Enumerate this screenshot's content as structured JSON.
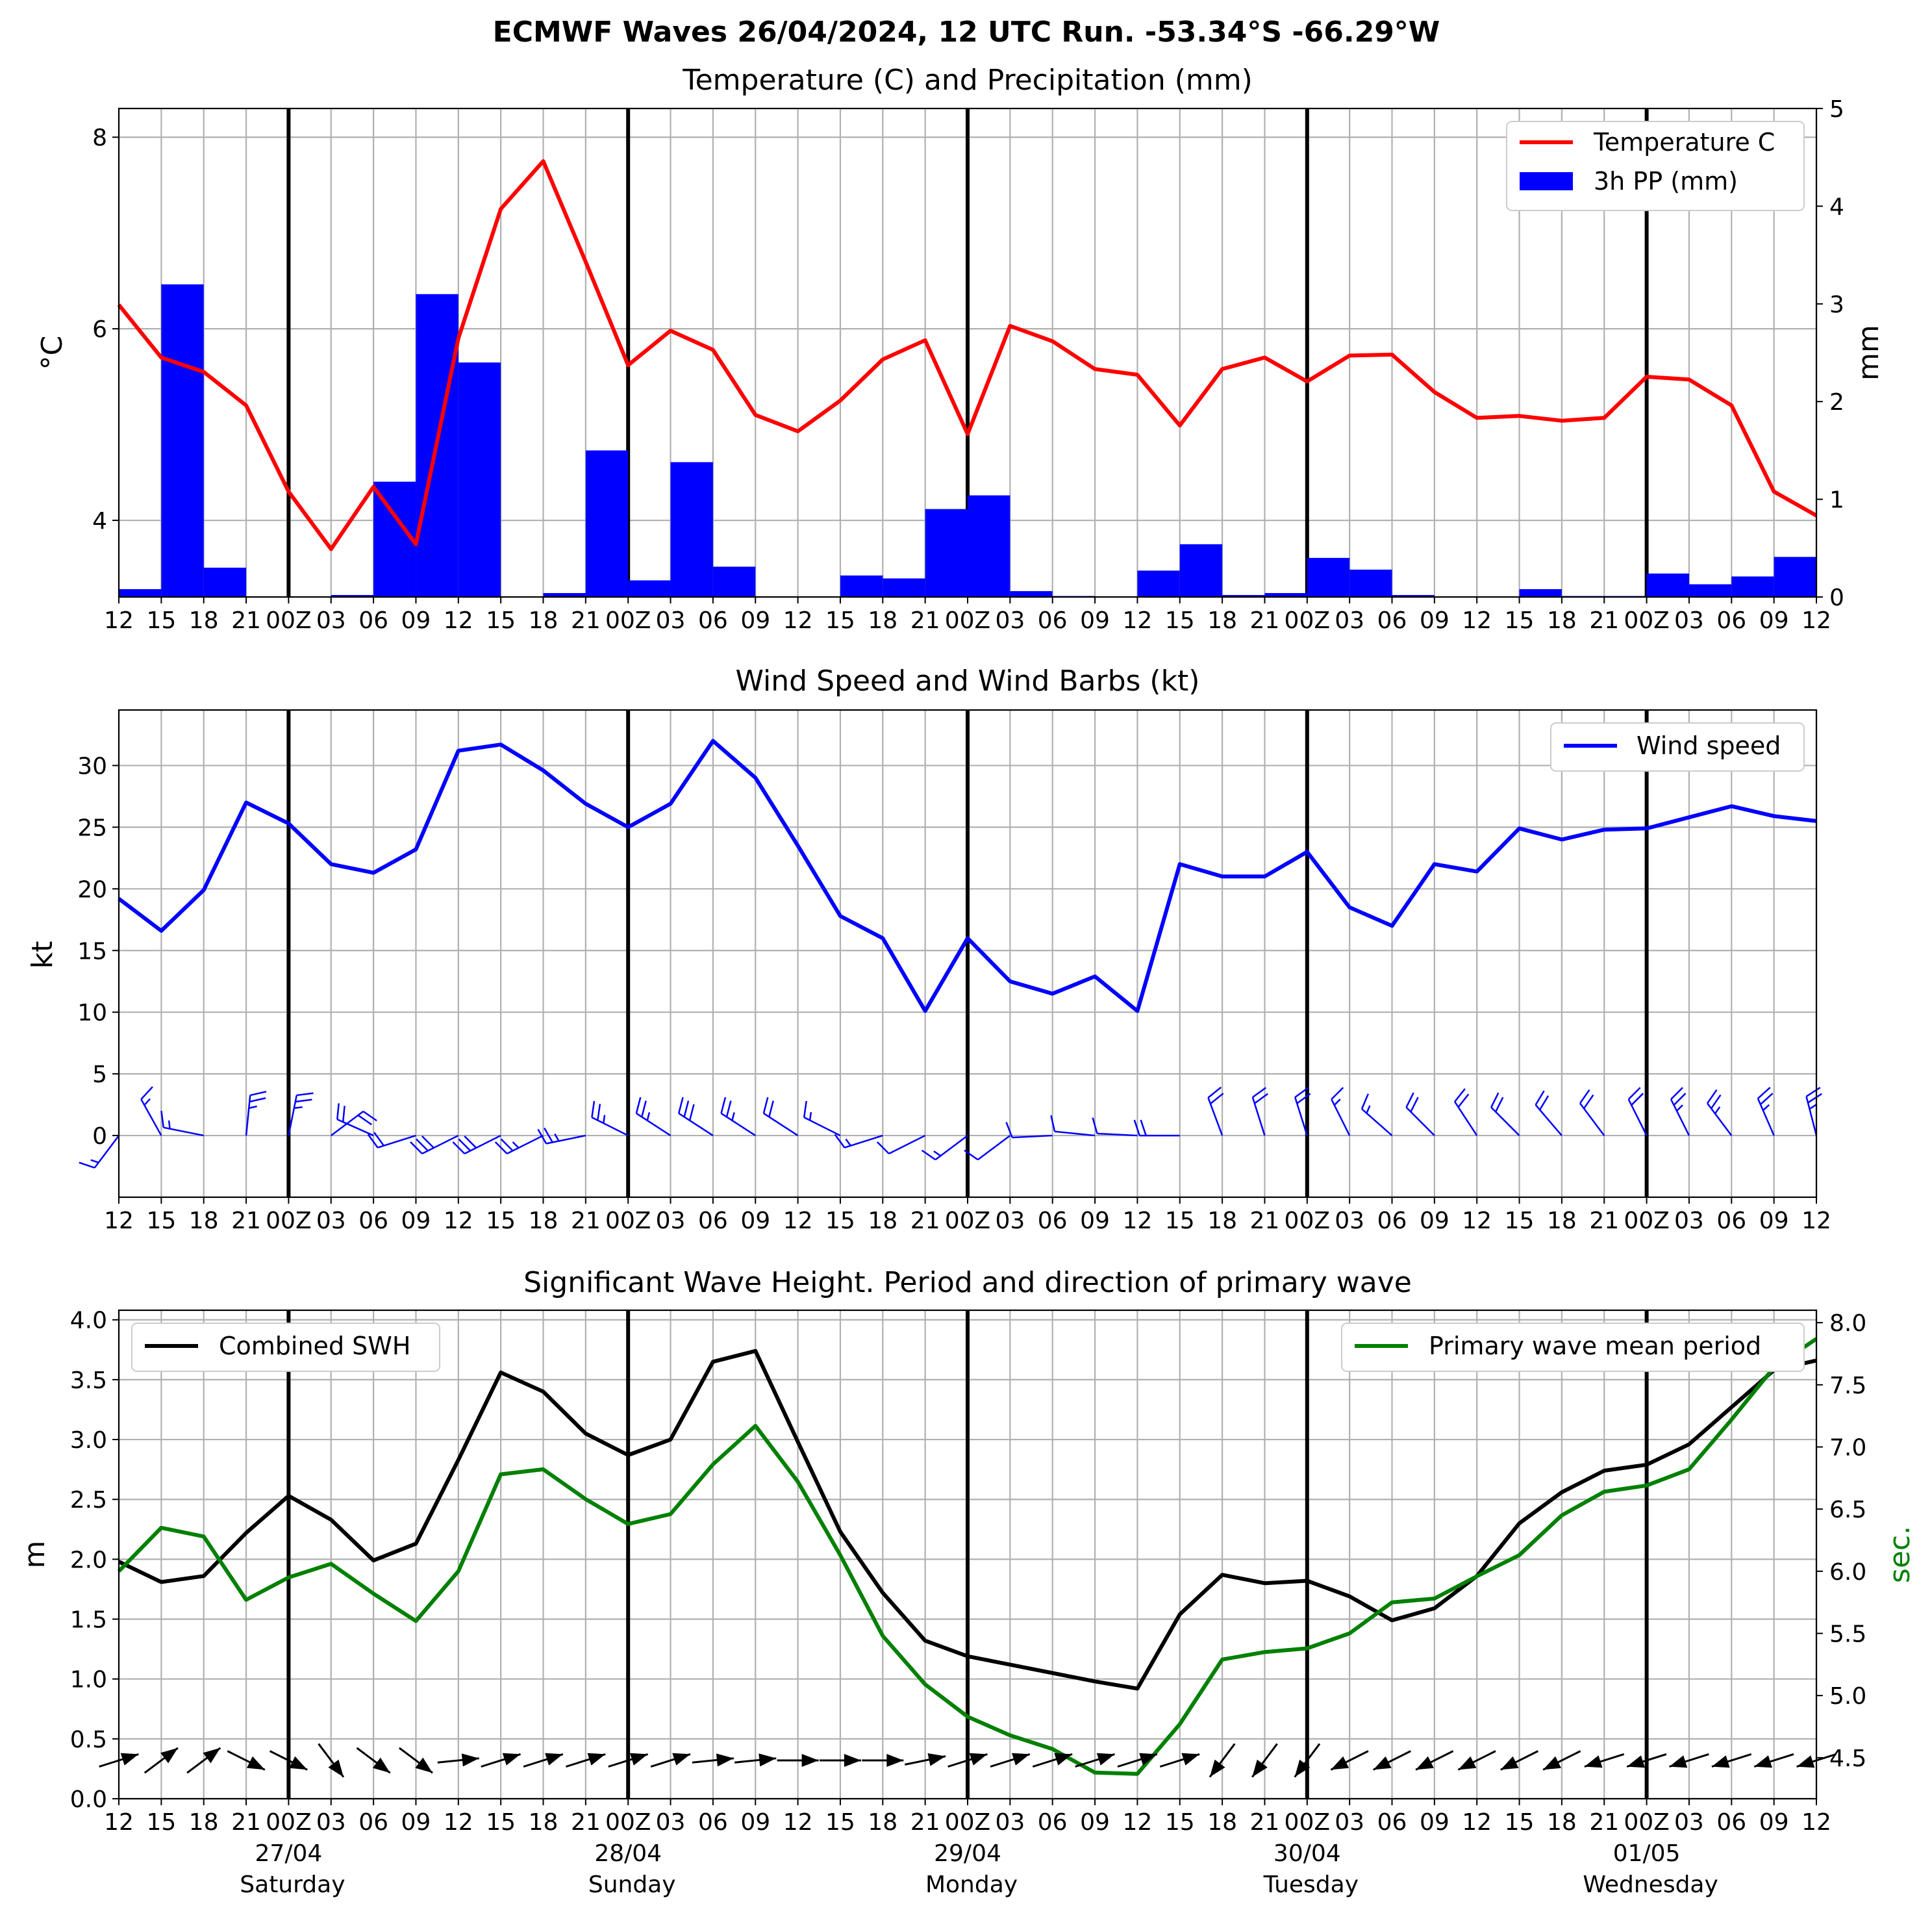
{
  "figure_title": "ECMWF Waves 26/04/2024, 12 UTC Run. -53.34°S -66.29°W",
  "time_ticks": [
    "12",
    "15",
    "18",
    "21",
    "00Z",
    "03",
    "06",
    "09",
    "12",
    "15",
    "18",
    "21",
    "00Z",
    "03",
    "06",
    "09",
    "12",
    "15",
    "18",
    "21",
    "00Z",
    "03",
    "06",
    "09",
    "12",
    "15",
    "18",
    "21",
    "00Z",
    "03",
    "06",
    "09",
    "12",
    "15",
    "18",
    "21",
    "00Z",
    "03",
    "06",
    "09",
    "12"
  ],
  "day_labels": [
    {
      "date": "27/04",
      "day": "Saturday"
    },
    {
      "date": "28/04",
      "day": "Sunday"
    },
    {
      "date": "29/04",
      "day": "Monday"
    },
    {
      "date": "30/04",
      "day": "Tuesday"
    },
    {
      "date": "01/05",
      "day": "Wednesday"
    }
  ],
  "colors": {
    "temperature": "#ff0000",
    "precipitation": "#0000ff",
    "wind": "#0000ff",
    "swh": "#000000",
    "period": "#008000",
    "grid": "#b0b0b0"
  },
  "chart_data": [
    {
      "type": "line+bar",
      "title": "Temperature (C) and Precipitation (mm)",
      "ylabel": "°C",
      "ylabel_right": "mm",
      "ylim": [
        3.2,
        8.3
      ],
      "ylim_right": [
        0,
        5
      ],
      "yticks": [
        4,
        6,
        8
      ],
      "yticks_right": [
        0,
        1,
        2,
        3,
        4,
        5
      ],
      "legend_position": "top-right",
      "grid": true,
      "series": [
        {
          "name": "Temperature C",
          "kind": "line",
          "axis": "left",
          "values": [
            6.25,
            5.7,
            5.55,
            5.2,
            4.3,
            3.7,
            4.35,
            3.75,
            5.9,
            7.25,
            7.75,
            6.7,
            5.62,
            5.98,
            5.78,
            5.1,
            4.93,
            5.25,
            5.68,
            5.88,
            4.9,
            6.03,
            5.87,
            5.58,
            5.52,
            4.99,
            5.58,
            5.7,
            5.45,
            5.72,
            5.73,
            5.34,
            5.07,
            5.09,
            5.04,
            5.07,
            5.5,
            5.47,
            5.2,
            4.3,
            4.05
          ]
        },
        {
          "name": "3h PP (mm)",
          "kind": "bar",
          "axis": "right",
          "values": [
            0,
            0.08,
            3.2,
            0.3,
            0,
            0,
            0.02,
            1.18,
            3.1,
            2.4,
            0,
            0.04,
            1.5,
            0.17,
            1.38,
            0.31,
            0,
            0,
            0.22,
            0.19,
            0.9,
            1.04,
            0.06,
            0.01,
            0,
            0.27,
            0.54,
            0.02,
            0.04,
            0.4,
            0.28,
            0.02,
            0,
            0,
            0.08,
            0.01,
            0.01,
            0.24,
            0.13,
            0.21,
            0.41
          ]
        }
      ]
    },
    {
      "type": "line",
      "title": "Wind Speed and Wind Barbs (kt)",
      "ylabel": "kt",
      "ylim": [
        -5,
        34.5
      ],
      "yticks": [
        0,
        5,
        10,
        15,
        20,
        25,
        30
      ],
      "legend_position": "top-right",
      "grid": true,
      "series": [
        {
          "name": "Wind speed",
          "values": [
            19.2,
            16.6,
            19.9,
            27.0,
            25.3,
            22.0,
            21.3,
            23.2,
            31.2,
            31.7,
            29.6,
            26.9,
            25.0,
            26.9,
            32.0,
            29.0,
            23.5,
            17.8,
            16.0,
            10.1,
            16.0,
            12.5,
            11.5,
            12.9,
            10.1,
            22.0,
            21.0,
            21.0,
            23.0,
            18.5,
            17.0,
            22.0,
            21.4,
            24.9,
            24.0,
            24.8,
            24.9,
            25.8,
            26.7,
            25.9,
            25.5
          ]
        }
      ],
      "wind_barbs": [
        {
          "u": 0.6,
          "v": 0.8
        },
        {
          "u": 0.5,
          "v": -0.9
        },
        {
          "u": 1.0,
          "v": -0.2
        },
        {
          "u": -0.1,
          "v": -1.0
        },
        {
          "u": -0.2,
          "v": -1.0
        },
        {
          "u": -0.8,
          "v": -0.6
        },
        {
          "u": 0.9,
          "v": -0.4
        },
        {
          "u": 0.95,
          "v": 0.3
        },
        {
          "u": 0.9,
          "v": 0.45
        },
        {
          "u": 0.9,
          "v": 0.45
        },
        {
          "u": 0.9,
          "v": 0.45
        },
        {
          "u": 0.98,
          "v": 0.2
        },
        {
          "u": 0.9,
          "v": -0.45
        },
        {
          "u": 0.85,
          "v": -0.55
        },
        {
          "u": 0.85,
          "v": -0.55
        },
        {
          "u": 0.85,
          "v": -0.55
        },
        {
          "u": 0.85,
          "v": -0.55
        },
        {
          "u": 0.9,
          "v": -0.45
        },
        {
          "u": 0.95,
          "v": 0.3
        },
        {
          "u": 0.9,
          "v": 0.45
        },
        {
          "u": 0.8,
          "v": 0.6
        },
        {
          "u": 0.8,
          "v": 0.6
        },
        {
          "u": 1.0,
          "v": 0.05
        },
        {
          "u": 1.0,
          "v": -0.1
        },
        {
          "u": 1.0,
          "v": -0.05
        },
        {
          "u": 1.0,
          "v": 0.0
        },
        {
          "u": 0.35,
          "v": -0.94
        },
        {
          "u": 0.3,
          "v": -0.95
        },
        {
          "u": 0.3,
          "v": -0.95
        },
        {
          "u": 0.45,
          "v": -0.9
        },
        {
          "u": 0.75,
          "v": -0.66
        },
        {
          "u": 0.7,
          "v": -0.7
        },
        {
          "u": 0.55,
          "v": -0.84
        },
        {
          "u": 0.7,
          "v": -0.7
        },
        {
          "u": 0.65,
          "v": -0.76
        },
        {
          "u": 0.6,
          "v": -0.8
        },
        {
          "u": 0.45,
          "v": -0.9
        },
        {
          "u": 0.45,
          "v": -0.9
        },
        {
          "u": 0.6,
          "v": -0.8
        },
        {
          "u": 0.4,
          "v": -0.92
        },
        {
          "u": 0.25,
          "v": -0.97
        }
      ]
    },
    {
      "type": "line",
      "title": "Significant Wave Height. Period and direction of primary wave",
      "ylabel": "m",
      "ylabel_right": "sec.",
      "ylim": [
        0,
        4.08
      ],
      "ylim_right": [
        4.17,
        8.1
      ],
      "yticks": [
        0.0,
        0.5,
        1.0,
        1.5,
        2.0,
        2.5,
        3.0,
        3.5,
        4.0
      ],
      "yticks_right": [
        4.5,
        5.0,
        5.5,
        6.0,
        6.5,
        7.0,
        7.5,
        8.0
      ],
      "grid": true,
      "series": [
        {
          "name": "Combined SWH",
          "axis": "left",
          "legend_position": "top-left",
          "values": [
            1.98,
            1.81,
            1.86,
            2.22,
            2.53,
            2.33,
            1.99,
            2.13,
            2.83,
            3.56,
            3.4,
            3.05,
            2.87,
            3.0,
            3.65,
            3.74,
            2.98,
            2.23,
            1.72,
            1.32,
            1.19,
            1.12,
            1.05,
            0.98,
            0.92,
            1.54,
            1.87,
            1.8,
            1.82,
            1.69,
            1.49,
            1.59,
            1.86,
            2.3,
            2.56,
            2.74,
            2.79,
            2.96,
            3.27,
            3.58,
            3.66
          ]
        },
        {
          "name": "Primary wave mean period",
          "axis": "right",
          "legend_position": "top-right",
          "values": [
            6.0,
            6.35,
            6.28,
            5.77,
            5.95,
            6.06,
            5.82,
            5.6,
            6.0,
            6.78,
            6.82,
            6.58,
            6.38,
            6.46,
            6.86,
            7.17,
            6.72,
            6.13,
            5.48,
            5.09,
            4.83,
            4.68,
            4.57,
            4.38,
            4.37,
            4.77,
            5.29,
            5.35,
            5.38,
            5.5,
            5.75,
            5.78,
            5.96,
            6.13,
            6.45,
            6.64,
            6.69,
            6.82,
            7.22,
            7.64,
            7.87
          ]
        }
      ],
      "wave_direction_arrows": [
        {
          "dx": 0.95,
          "dy": -0.3
        },
        {
          "dx": 0.8,
          "dy": -0.6
        },
        {
          "dx": 0.8,
          "dy": -0.6
        },
        {
          "dx": 0.9,
          "dy": 0.45
        },
        {
          "dx": 0.9,
          "dy": 0.45
        },
        {
          "dx": 0.6,
          "dy": 0.8
        },
        {
          "dx": 0.8,
          "dy": 0.6
        },
        {
          "dx": 0.8,
          "dy": 0.6
        },
        {
          "dx": 1.0,
          "dy": -0.1
        },
        {
          "dx": 0.95,
          "dy": -0.3
        },
        {
          "dx": 0.95,
          "dy": -0.3
        },
        {
          "dx": 0.95,
          "dy": -0.3
        },
        {
          "dx": 0.95,
          "dy": -0.3
        },
        {
          "dx": 0.95,
          "dy": -0.3
        },
        {
          "dx": 1.0,
          "dy": -0.1
        },
        {
          "dx": 1.0,
          "dy": -0.1
        },
        {
          "dx": 1.0,
          "dy": 0.0
        },
        {
          "dx": 1.0,
          "dy": 0.0
        },
        {
          "dx": 1.0,
          "dy": 0.0
        },
        {
          "dx": 0.98,
          "dy": -0.2
        },
        {
          "dx": 0.95,
          "dy": -0.3
        },
        {
          "dx": 0.95,
          "dy": -0.3
        },
        {
          "dx": 0.95,
          "dy": -0.3
        },
        {
          "dx": 0.95,
          "dy": -0.3
        },
        {
          "dx": 0.95,
          "dy": -0.3
        },
        {
          "dx": 0.95,
          "dy": -0.3
        },
        {
          "dx": -0.6,
          "dy": 0.8
        },
        {
          "dx": -0.6,
          "dy": 0.8
        },
        {
          "dx": -0.6,
          "dy": 0.8
        },
        {
          "dx": -0.9,
          "dy": 0.45
        },
        {
          "dx": -0.9,
          "dy": 0.45
        },
        {
          "dx": -0.9,
          "dy": 0.45
        },
        {
          "dx": -0.9,
          "dy": 0.45
        },
        {
          "dx": -0.9,
          "dy": 0.45
        },
        {
          "dx": -0.9,
          "dy": 0.45
        },
        {
          "dx": -0.95,
          "dy": 0.3
        },
        {
          "dx": -0.95,
          "dy": 0.3
        },
        {
          "dx": -0.95,
          "dy": 0.3
        },
        {
          "dx": -0.95,
          "dy": 0.3
        },
        {
          "dx": -0.95,
          "dy": 0.3
        },
        {
          "dx": -0.95,
          "dy": 0.3
        }
      ]
    }
  ]
}
